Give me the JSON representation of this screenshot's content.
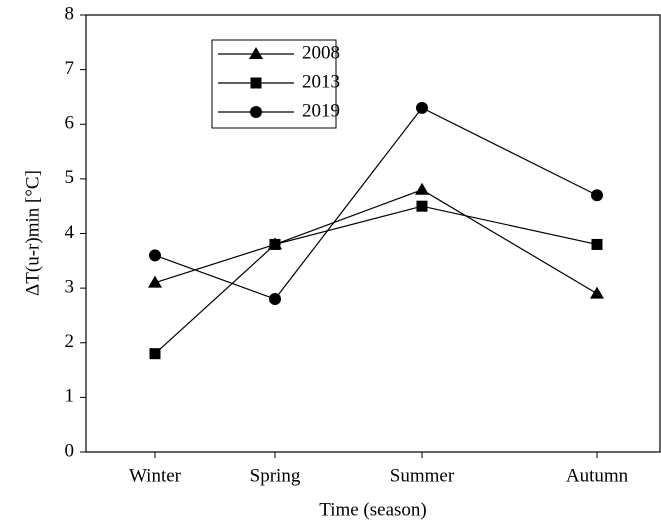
{
  "chart_data": {
    "type": "line",
    "xlabel": "Time (season)",
    "ylabel": "ΔT(u-r)min [°C]",
    "categories": [
      "Winter",
      "Spring",
      "Summer",
      "Autumn"
    ],
    "series": [
      {
        "name": "2008",
        "color": "#000000",
        "marker": "triangle",
        "values": [
          3.1,
          3.8,
          4.8,
          2.9
        ]
      },
      {
        "name": "2013",
        "color": "#000000",
        "marker": "square",
        "values": [
          1.8,
          3.8,
          4.5,
          3.8
        ]
      },
      {
        "name": "2019",
        "color": "#000000",
        "marker": "circle",
        "values": [
          3.6,
          2.8,
          6.3,
          4.7
        ]
      }
    ],
    "ylim": [
      0,
      8
    ],
    "yticks": [
      0,
      1,
      2,
      3,
      4,
      5,
      6,
      7,
      8
    ]
  }
}
